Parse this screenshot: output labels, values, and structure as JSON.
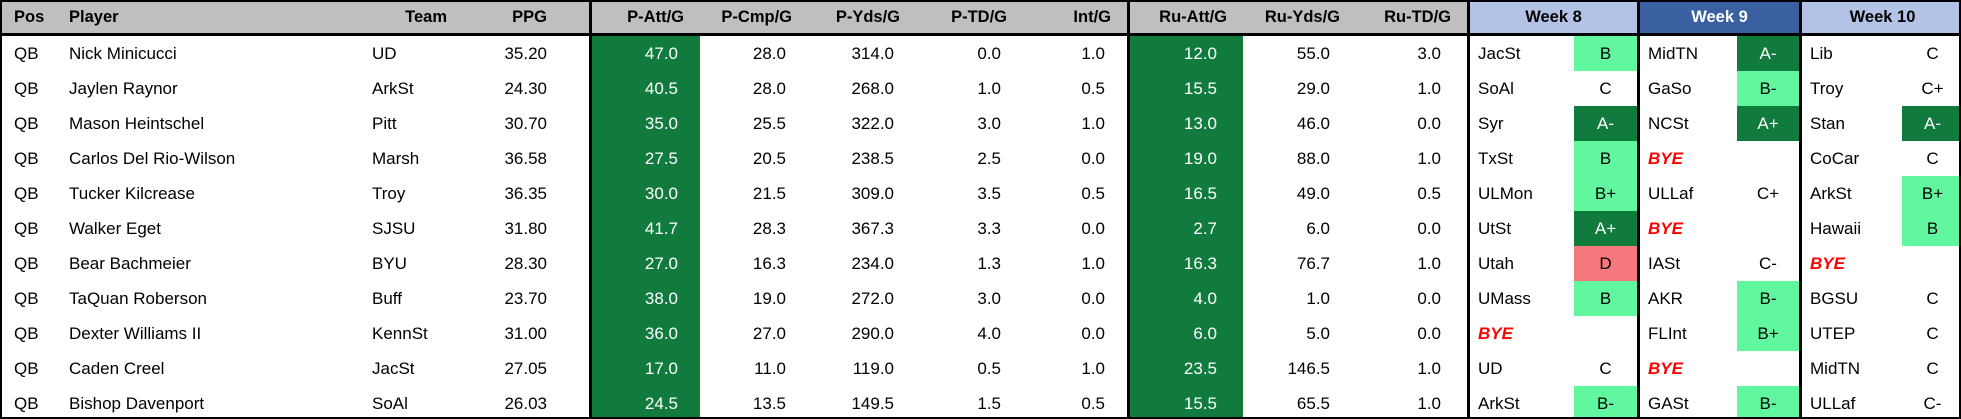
{
  "table": {
    "columns": [
      "Pos",
      "Player",
      "Team",
      "PPG",
      "P-Att/G",
      "P-Cmp/G",
      "P-Yds/G",
      "P-TD/G",
      "Int/G",
      "Ru-Att/G",
      "Ru-Yds/G",
      "Ru-TD/G"
    ],
    "week_headers": [
      "Week 8",
      "Week 9",
      "Week 10"
    ],
    "rows": [
      {
        "pos": "QB",
        "player": "Nick Minicucci",
        "team": "UD",
        "ppg": "35.20",
        "p_att": "47.0",
        "p_cmp": "28.0",
        "p_yds": "314.0",
        "p_td": "0.0",
        "int_g": "1.0",
        "ru_att": "12.0",
        "ru_yds": "55.0",
        "ru_td": "3.0",
        "weeks": [
          {
            "opp": "JacSt",
            "grade": "B",
            "tier": "good"
          },
          {
            "opp": "MidTN",
            "grade": "A-",
            "tier": "great"
          },
          {
            "opp": "Lib",
            "grade": "C",
            "tier": "neutral"
          }
        ]
      },
      {
        "pos": "QB",
        "player": "Jaylen Raynor",
        "team": "ArkSt",
        "ppg": "24.30",
        "p_att": "40.5",
        "p_cmp": "28.0",
        "p_yds": "268.0",
        "p_td": "1.0",
        "int_g": "0.5",
        "ru_att": "15.5",
        "ru_yds": "29.0",
        "ru_td": "1.0",
        "weeks": [
          {
            "opp": "SoAl",
            "grade": "C",
            "tier": "neutral"
          },
          {
            "opp": "GaSo",
            "grade": "B-",
            "tier": "good"
          },
          {
            "opp": "Troy",
            "grade": "C+",
            "tier": "neutral"
          }
        ]
      },
      {
        "pos": "QB",
        "player": "Mason Heintschel",
        "team": "Pitt",
        "ppg": "30.70",
        "p_att": "35.0",
        "p_cmp": "25.5",
        "p_yds": "322.0",
        "p_td": "3.0",
        "int_g": "1.0",
        "ru_att": "13.0",
        "ru_yds": "46.0",
        "ru_td": "0.0",
        "weeks": [
          {
            "opp": "Syr",
            "grade": "A-",
            "tier": "great"
          },
          {
            "opp": "NCSt",
            "grade": "A+",
            "tier": "great"
          },
          {
            "opp": "Stan",
            "grade": "A-",
            "tier": "great"
          }
        ]
      },
      {
        "pos": "QB",
        "player": "Carlos Del Rio-Wilson",
        "team": "Marsh",
        "ppg": "36.58",
        "p_att": "27.5",
        "p_cmp": "20.5",
        "p_yds": "238.5",
        "p_td": "2.5",
        "int_g": "0.0",
        "ru_att": "19.0",
        "ru_yds": "88.0",
        "ru_td": "1.0",
        "weeks": [
          {
            "opp": "TxSt",
            "grade": "B",
            "tier": "good"
          },
          {
            "opp": "BYE",
            "grade": "",
            "tier": "neutral",
            "bye": true
          },
          {
            "opp": "CoCar",
            "grade": "C",
            "tier": "neutral"
          }
        ]
      },
      {
        "pos": "QB",
        "player": "Tucker Kilcrease",
        "team": "Troy",
        "ppg": "36.35",
        "p_att": "30.0",
        "p_cmp": "21.5",
        "p_yds": "309.0",
        "p_td": "3.5",
        "int_g": "0.5",
        "ru_att": "16.5",
        "ru_yds": "49.0",
        "ru_td": "0.5",
        "weeks": [
          {
            "opp": "ULMon",
            "grade": "B+",
            "tier": "good"
          },
          {
            "opp": "ULLaf",
            "grade": "C+",
            "tier": "neutral"
          },
          {
            "opp": "ArkSt",
            "grade": "B+",
            "tier": "good"
          }
        ]
      },
      {
        "pos": "QB",
        "player": "Walker Eget",
        "team": "SJSU",
        "ppg": "31.80",
        "p_att": "41.7",
        "p_cmp": "28.3",
        "p_yds": "367.3",
        "p_td": "3.3",
        "int_g": "0.0",
        "ru_att": "2.7",
        "ru_yds": "6.0",
        "ru_td": "0.0",
        "weeks": [
          {
            "opp": "UtSt",
            "grade": "A+",
            "tier": "great"
          },
          {
            "opp": "BYE",
            "grade": "",
            "tier": "neutral",
            "bye": true
          },
          {
            "opp": "Hawaii",
            "grade": "B",
            "tier": "good"
          }
        ]
      },
      {
        "pos": "QB",
        "player": "Bear Bachmeier",
        "team": "BYU",
        "ppg": "28.30",
        "p_att": "27.0",
        "p_cmp": "16.3",
        "p_yds": "234.0",
        "p_td": "1.3",
        "int_g": "1.0",
        "ru_att": "16.3",
        "ru_yds": "76.7",
        "ru_td": "1.0",
        "weeks": [
          {
            "opp": "Utah",
            "grade": "D",
            "tier": "bad"
          },
          {
            "opp": "IASt",
            "grade": "C-",
            "tier": "neutral"
          },
          {
            "opp": "BYE",
            "grade": "",
            "tier": "neutral",
            "bye": true
          }
        ]
      },
      {
        "pos": "QB",
        "player": "TaQuan Roberson",
        "team": "Buff",
        "ppg": "23.70",
        "p_att": "38.0",
        "p_cmp": "19.0",
        "p_yds": "272.0",
        "p_td": "3.0",
        "int_g": "0.0",
        "ru_att": "4.0",
        "ru_yds": "1.0",
        "ru_td": "0.0",
        "weeks": [
          {
            "opp": "UMass",
            "grade": "B",
            "tier": "good"
          },
          {
            "opp": "AKR",
            "grade": "B-",
            "tier": "good"
          },
          {
            "opp": "BGSU",
            "grade": "C",
            "tier": "neutral"
          }
        ]
      },
      {
        "pos": "QB",
        "player": "Dexter Williams II",
        "team": "KennSt",
        "ppg": "31.00",
        "p_att": "36.0",
        "p_cmp": "27.0",
        "p_yds": "290.0",
        "p_td": "4.0",
        "int_g": "0.0",
        "ru_att": "6.0",
        "ru_yds": "5.0",
        "ru_td": "0.0",
        "weeks": [
          {
            "opp": "BYE",
            "grade": "",
            "tier": "neutral",
            "bye": true
          },
          {
            "opp": "FLInt",
            "grade": "B+",
            "tier": "good"
          },
          {
            "opp": "UTEP",
            "grade": "C",
            "tier": "neutral"
          }
        ]
      },
      {
        "pos": "QB",
        "player": "Caden Creel",
        "team": "JacSt",
        "ppg": "27.05",
        "p_att": "17.0",
        "p_cmp": "11.0",
        "p_yds": "119.0",
        "p_td": "0.5",
        "int_g": "1.0",
        "ru_att": "23.5",
        "ru_yds": "146.5",
        "ru_td": "1.0",
        "weeks": [
          {
            "opp": "UD",
            "grade": "C",
            "tier": "neutral"
          },
          {
            "opp": "BYE",
            "grade": "",
            "tier": "neutral",
            "bye": true
          },
          {
            "opp": "MidTN",
            "grade": "C",
            "tier": "neutral"
          }
        ]
      },
      {
        "pos": "QB",
        "player": "Bishop Davenport",
        "team": "SoAl",
        "ppg": "26.03",
        "p_att": "24.5",
        "p_cmp": "13.5",
        "p_yds": "149.5",
        "p_td": "1.5",
        "int_g": "0.5",
        "ru_att": "15.5",
        "ru_yds": "65.5",
        "ru_td": "1.0",
        "weeks": [
          {
            "opp": "ArkSt",
            "grade": "B-",
            "tier": "good"
          },
          {
            "opp": "GASt",
            "grade": "B-",
            "tier": "good"
          },
          {
            "opp": "ULLaf",
            "grade": "C-",
            "tier": "neutral"
          }
        ]
      }
    ]
  },
  "colors": {
    "header_gray": "#bfbfbf",
    "stat_column_green": "#117b3d",
    "grade_great_green": "#117b3d",
    "grade_good_mint": "#61f79e",
    "grade_bad_red": "#f4787c",
    "week_header_light_blue": "#b3c3e6",
    "week_header_dark_blue": "#3a60a2",
    "bye_red": "#ff0000"
  }
}
